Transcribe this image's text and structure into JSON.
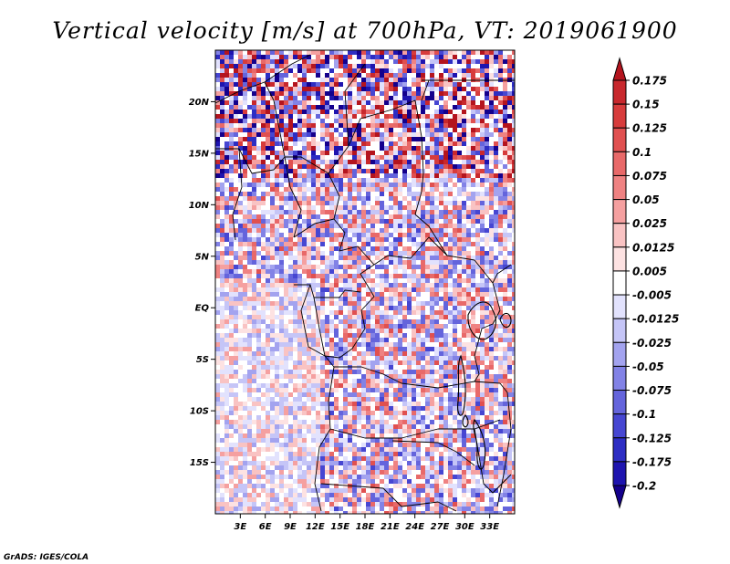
{
  "title": "Vertical velocity [m/s] at 700hPa, VT: 2019061900",
  "credit": "GrADS: IGES/COLA",
  "map": {
    "lon_range": [
      0,
      36
    ],
    "lat_range": [
      -20,
      25
    ],
    "lat_ticks": [
      {
        "value": 20,
        "label": "20N"
      },
      {
        "value": 15,
        "label": "15N"
      },
      {
        "value": 10,
        "label": "10N"
      },
      {
        "value": 5,
        "label": "5N"
      },
      {
        "value": 0,
        "label": "EQ"
      },
      {
        "value": -5,
        "label": "5S"
      },
      {
        "value": -10,
        "label": "10S"
      },
      {
        "value": -15,
        "label": "15S"
      }
    ],
    "lon_ticks": [
      {
        "value": 3,
        "label": "3E"
      },
      {
        "value": 6,
        "label": "6E"
      },
      {
        "value": 9,
        "label": "9E"
      },
      {
        "value": 12,
        "label": "12E"
      },
      {
        "value": 15,
        "label": "15E"
      },
      {
        "value": 18,
        "label": "18E"
      },
      {
        "value": 21,
        "label": "21E"
      },
      {
        "value": 24,
        "label": "24E"
      },
      {
        "value": 27,
        "label": "27E"
      },
      {
        "value": 30,
        "label": "30E"
      },
      {
        "value": 33,
        "label": "33E"
      }
    ]
  },
  "colorbar": {
    "labels": [
      "0.175",
      "0.15",
      "0.125",
      "0.1",
      "0.075",
      "0.05",
      "0.025",
      "0.0125",
      "0.005",
      "-0.005",
      "-0.0125",
      "-0.025",
      "-0.05",
      "-0.075",
      "-0.1",
      "-0.125",
      "-0.175",
      "-0.2"
    ],
    "colors": [
      "#b4141e",
      "#c8282d",
      "#d73c3c",
      "#e05050",
      "#e86969",
      "#ef8282",
      "#f5a0a0",
      "#f9c3c3",
      "#fde2e2",
      "#ffffff",
      "#e2e2fd",
      "#c5c5f7",
      "#a3a3ef",
      "#8282e6",
      "#6464dc",
      "#4646d2",
      "#2d2dc3",
      "#1e14af",
      "#14008c"
    ]
  }
}
